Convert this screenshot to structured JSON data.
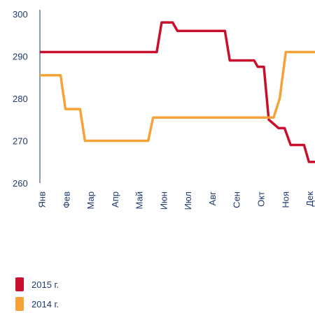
{
  "chart_data": {
    "type": "line",
    "xlim": [
      -0.1,
      11.2
    ],
    "xticks": [
      {
        "value": 0,
        "label": "Янв"
      },
      {
        "value": 1,
        "label": "Фев"
      },
      {
        "value": 2,
        "label": "Мар"
      },
      {
        "value": 3,
        "label": "Апр"
      },
      {
        "value": 4,
        "label": "Май"
      },
      {
        "value": 5,
        "label": "Июн"
      },
      {
        "value": 6,
        "label": "Июл"
      },
      {
        "value": 7,
        "label": "Авг"
      },
      {
        "value": 8,
        "label": "Сен"
      },
      {
        "value": 9,
        "label": "Окт"
      },
      {
        "value": 10,
        "label": "Ноя"
      },
      {
        "value": 11,
        "label": "Дек"
      }
    ],
    "ylim": [
      260,
      300
    ],
    "yticks": [
      260,
      270,
      280,
      290,
      300
    ],
    "series": [
      {
        "name": "2015 г.",
        "color": "#c8102e",
        "x": [
          -0.1,
          4.7,
          4.9,
          5.35,
          5.55,
          7.5,
          7.7,
          8.7,
          8.85,
          9.1,
          9.3,
          9.7,
          9.95,
          10.2,
          10.75,
          10.95,
          11.2
        ],
        "values": [
          291,
          291,
          298,
          298,
          296,
          296,
          289,
          289,
          287.5,
          287.5,
          275,
          273,
          273,
          269,
          269,
          265,
          265
        ]
      },
      {
        "name": "2014 г.",
        "color": "#f7a239",
        "x": [
          -0.1,
          0.75,
          0.95,
          1.55,
          1.75,
          4.35,
          4.55,
          9.5,
          9.75,
          10.0,
          11.2
        ],
        "values": [
          285.5,
          285.5,
          277.5,
          277.5,
          270,
          270,
          275.5,
          275.5,
          280,
          291,
          291
        ]
      }
    ]
  }
}
